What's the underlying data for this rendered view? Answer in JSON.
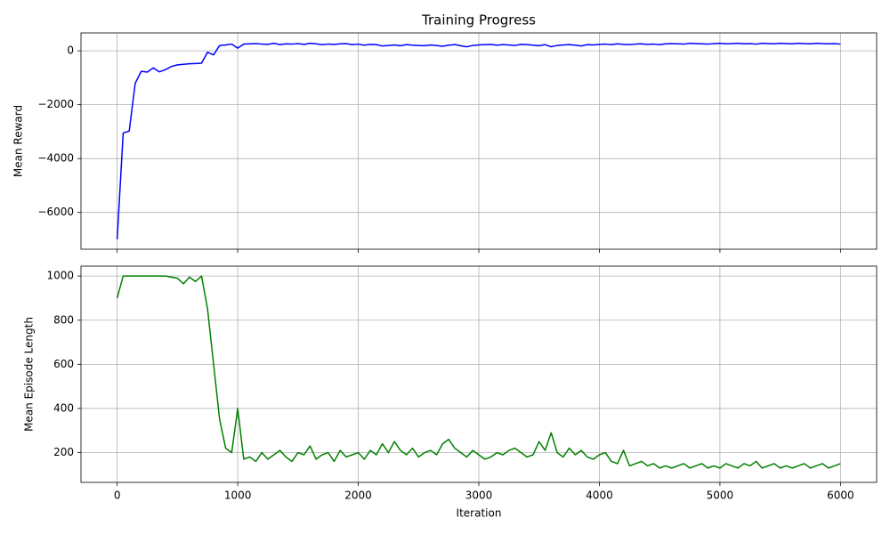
{
  "chart_data": [
    {
      "type": "line",
      "title": "Training Progress",
      "y_label": "Mean Reward",
      "grid": true,
      "xlim": [
        -300,
        6300
      ],
      "xticks": [
        0,
        1000,
        2000,
        3000,
        4000,
        5000,
        6000
      ],
      "ylim": [
        -7365,
        665
      ],
      "yticks": [
        {
          "value": -6000,
          "label": "−6000"
        },
        {
          "value": -4000,
          "label": "−4000"
        },
        {
          "value": -2000,
          "label": "−2000"
        },
        0
      ],
      "x": [
        0,
        50,
        100,
        150,
        200,
        250,
        300,
        350,
        400,
        450,
        500,
        550,
        600,
        650,
        700,
        750,
        800,
        850,
        900,
        950,
        1000,
        1050,
        1100,
        1150,
        1200,
        1250,
        1300,
        1350,
        1400,
        1450,
        1500,
        1550,
        1600,
        1650,
        1700,
        1750,
        1800,
        1850,
        1900,
        1950,
        2000,
        2050,
        2100,
        2150,
        2200,
        2250,
        2300,
        2350,
        2400,
        2450,
        2500,
        2550,
        2600,
        2650,
        2700,
        2750,
        2800,
        2850,
        2900,
        2950,
        3000,
        3050,
        3100,
        3150,
        3200,
        3250,
        3300,
        3350,
        3400,
        3450,
        3500,
        3550,
        3600,
        3650,
        3700,
        3750,
        3800,
        3850,
        3900,
        3950,
        4000,
        4050,
        4100,
        4150,
        4200,
        4250,
        4300,
        4350,
        4400,
        4450,
        4500,
        4550,
        4600,
        4650,
        4700,
        4750,
        4800,
        4850,
        4900,
        4950,
        5000,
        5050,
        5100,
        5150,
        5200,
        5250,
        5300,
        5350,
        5400,
        5450,
        5500,
        5550,
        5600,
        5650,
        5700,
        5750,
        5800,
        5850,
        5900,
        5950,
        6000
      ],
      "series": [
        {
          "color": "#0000ff",
          "values": [
            -7000,
            -3050,
            -2980,
            -1200,
            -760,
            -790,
            -630,
            -780,
            -700,
            -580,
            -520,
            -500,
            -480,
            -470,
            -460,
            -50,
            -150,
            200,
            220,
            250,
            100,
            250,
            260,
            270,
            250,
            240,
            280,
            230,
            260,
            250,
            270,
            240,
            280,
            260,
            230,
            250,
            240,
            260,
            270,
            230,
            250,
            210,
            240,
            230,
            180,
            200,
            220,
            190,
            230,
            210,
            200,
            190,
            220,
            200,
            170,
            210,
            230,
            190,
            150,
            200,
            220,
            230,
            240,
            210,
            230,
            220,
            200,
            240,
            230,
            210,
            190,
            230,
            150,
            200,
            220,
            230,
            210,
            180,
            230,
            220,
            240,
            250,
            230,
            260,
            240,
            230,
            250,
            260,
            240,
            250,
            230,
            260,
            270,
            260,
            250,
            280,
            270,
            260,
            250,
            270,
            280,
            260,
            270,
            280,
            260,
            270,
            250,
            280,
            270,
            260,
            280,
            270,
            260,
            280,
            270,
            260,
            280,
            270,
            260,
            270,
            250
          ]
        }
      ]
    },
    {
      "type": "line",
      "x_label": "Iteration",
      "y_label": "Mean Episode Length",
      "grid": true,
      "xlim": [
        -300,
        6300
      ],
      "xticks": [
        0,
        1000,
        2000,
        3000,
        4000,
        5000,
        6000
      ],
      "ylim": [
        65,
        1045
      ],
      "yticks": [
        200,
        400,
        600,
        800,
        1000
      ],
      "x": [
        0,
        50,
        100,
        150,
        200,
        250,
        300,
        350,
        400,
        450,
        500,
        550,
        600,
        650,
        700,
        750,
        800,
        850,
        900,
        950,
        1000,
        1050,
        1100,
        1150,
        1200,
        1250,
        1300,
        1350,
        1400,
        1450,
        1500,
        1550,
        1600,
        1650,
        1700,
        1750,
        1800,
        1850,
        1900,
        1950,
        2000,
        2050,
        2100,
        2150,
        2200,
        2250,
        2300,
        2350,
        2400,
        2450,
        2500,
        2550,
        2600,
        2650,
        2700,
        2750,
        2800,
        2850,
        2900,
        2950,
        3000,
        3050,
        3100,
        3150,
        3200,
        3250,
        3300,
        3350,
        3400,
        3450,
        3500,
        3550,
        3600,
        3650,
        3700,
        3750,
        3800,
        3850,
        3900,
        3950,
        4000,
        4050,
        4100,
        4150,
        4200,
        4250,
        4300,
        4350,
        4400,
        4450,
        4500,
        4550,
        4600,
        4650,
        4700,
        4750,
        4800,
        4850,
        4900,
        4950,
        5000,
        5050,
        5100,
        5150,
        5200,
        5250,
        5300,
        5350,
        5400,
        5450,
        5500,
        5550,
        5600,
        5650,
        5700,
        5750,
        5800,
        5850,
        5900,
        5950,
        6000
      ],
      "series": [
        {
          "color": "#008000",
          "values": [
            900,
            1000,
            1000,
            1000,
            1000,
            1000,
            1000,
            1000,
            1000,
            995,
            990,
            965,
            995,
            975,
            1000,
            850,
            600,
            350,
            220,
            200,
            400,
            170,
            180,
            160,
            200,
            170,
            190,
            210,
            180,
            160,
            200,
            190,
            230,
            170,
            190,
            200,
            160,
            210,
            180,
            190,
            200,
            170,
            210,
            190,
            240,
            200,
            250,
            210,
            190,
            220,
            180,
            200,
            210,
            190,
            240,
            260,
            220,
            200,
            180,
            210,
            190,
            170,
            180,
            200,
            190,
            210,
            220,
            200,
            180,
            190,
            250,
            210,
            290,
            200,
            180,
            220,
            190,
            210,
            180,
            170,
            190,
            200,
            160,
            150,
            210,
            140,
            150,
            160,
            140,
            150,
            130,
            140,
            130,
            140,
            150,
            130,
            140,
            150,
            130,
            140,
            130,
            150,
            140,
            130,
            150,
            140,
            160,
            130,
            140,
            150,
            130,
            140,
            130,
            140,
            150,
            130,
            140,
            150,
            130,
            140,
            150
          ]
        }
      ]
    }
  ]
}
